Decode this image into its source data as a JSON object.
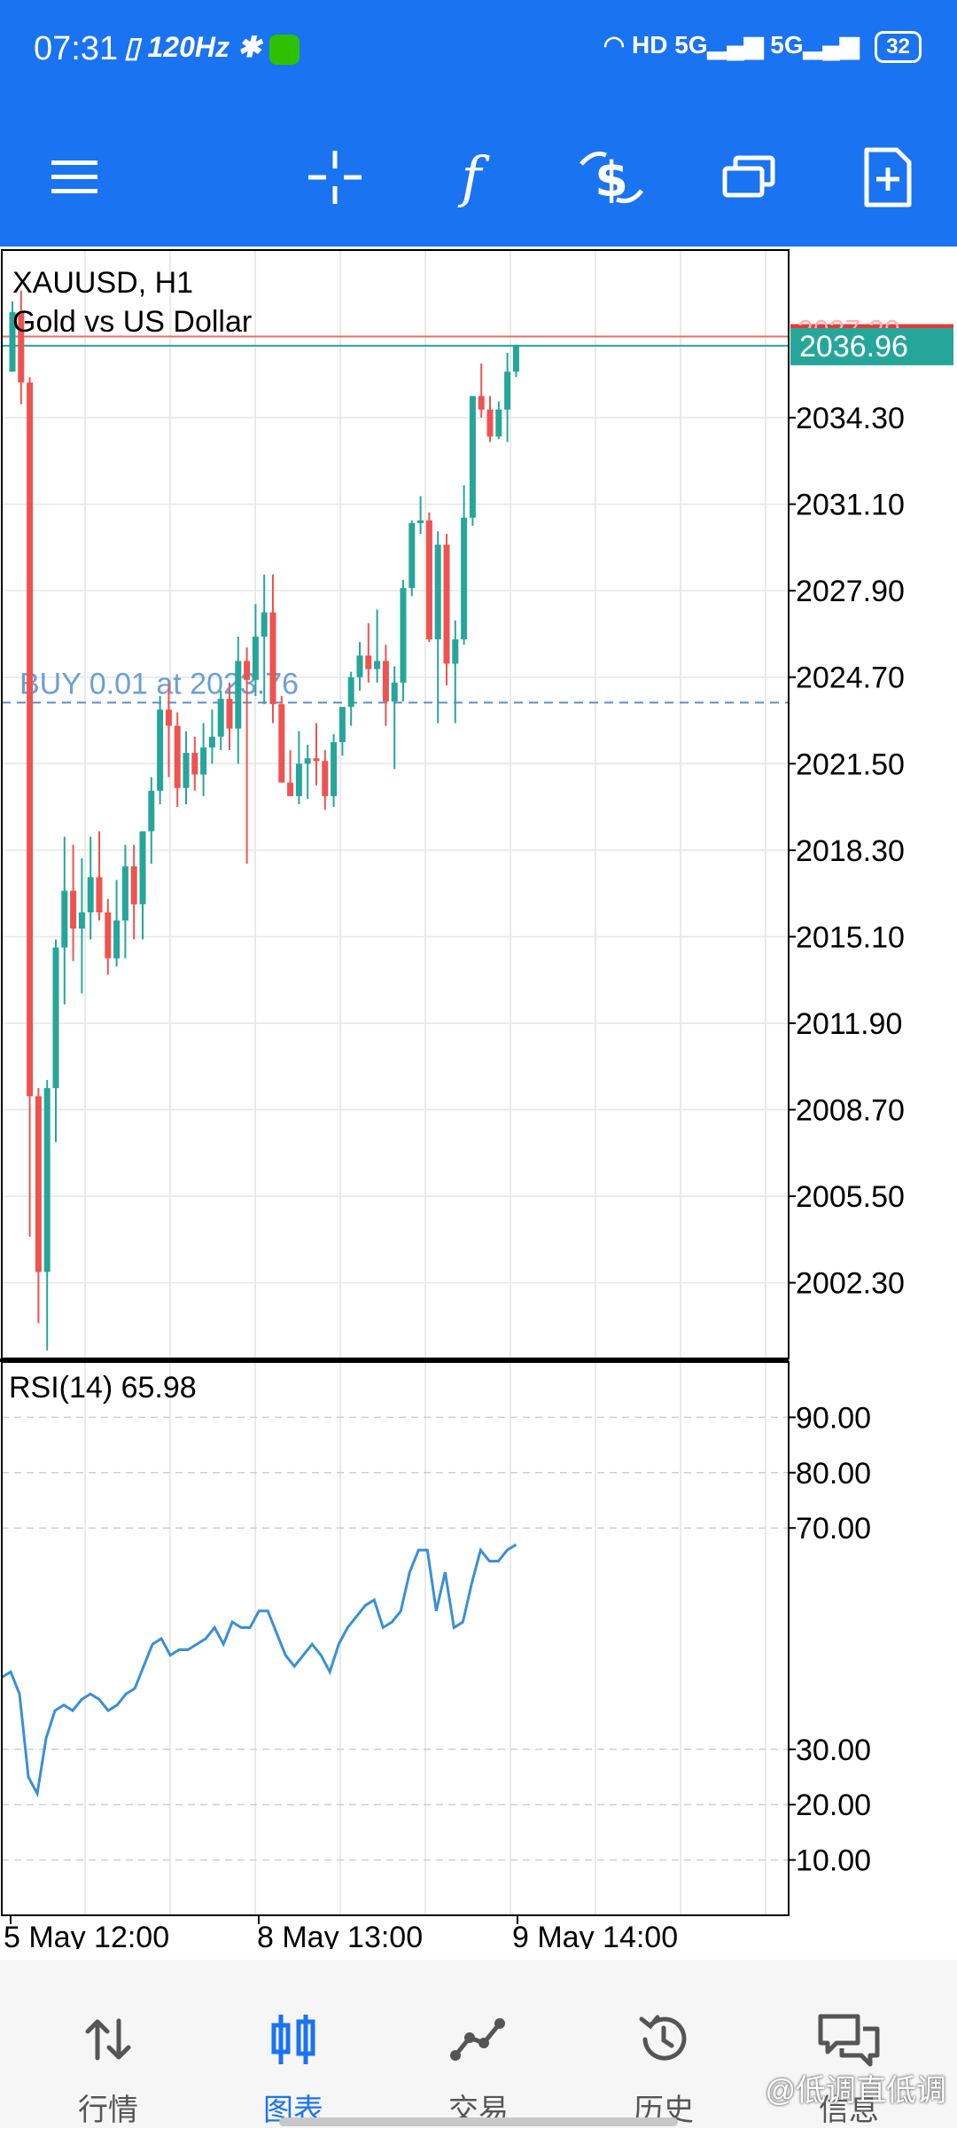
{
  "status_bar": {
    "time": "07:31",
    "refresh_rate": "120Hz",
    "network": "HD",
    "battery": "32",
    "icons": [
      "vibrate-icon",
      "bluetooth-icon",
      "wechat-icon",
      "wifi-icon",
      "signal-5g-icon",
      "signal-5g-icon"
    ]
  },
  "toolbar": {
    "buttons": [
      "menu-icon",
      "crosshair-icon",
      "indicators-icon",
      "trade-icon",
      "timeframe-windows-icon",
      "new-order-icon"
    ]
  },
  "chart_data": [
    {
      "type": "candlestick",
      "symbol": "XAUUSD, H1",
      "description": "Gold vs US Dollar",
      "ylim": [
        1999.5,
        2040.5
      ],
      "yticks": [
        2034.3,
        2031.1,
        2027.9,
        2024.7,
        2021.5,
        2018.3,
        2015.1,
        2011.9,
        2008.7,
        2005.5,
        2002.3
      ],
      "ytick_labels": [
        "2034.30",
        "2031.10",
        "2027.90",
        "2024.70",
        "2021.50",
        "2018.30",
        "2015.10",
        "2011.90",
        "2008.70",
        "2005.50",
        "2002.30"
      ],
      "bid_price": "2036.96",
      "bid_value": 2036.96,
      "ask_price": "2037.30",
      "ask_value": 2037.3,
      "buy_line_label": "BUY 0.01 at 2023.76",
      "buy_line_value": 2023.76,
      "up_color": "#26a69a",
      "down_color": "#ef5350",
      "candles": [
        {
          "o": 2036.0,
          "h": 2038.6,
          "l": 2036.0,
          "c": 2038.2
        },
        {
          "o": 2038.2,
          "h": 2039.0,
          "l": 2034.8,
          "c": 2035.6
        },
        {
          "o": 2035.6,
          "h": 2035.8,
          "l": 2004.0,
          "c": 2009.2
        },
        {
          "o": 2009.2,
          "h": 2009.5,
          "l": 2000.8,
          "c": 2002.7
        },
        {
          "o": 2002.7,
          "h": 2009.8,
          "l": 1999.8,
          "c": 2009.5
        },
        {
          "o": 2009.5,
          "h": 2015.0,
          "l": 2007.5,
          "c": 2014.7
        },
        {
          "o": 2014.7,
          "h": 2018.8,
          "l": 2012.6,
          "c": 2016.8
        },
        {
          "o": 2016.8,
          "h": 2018.5,
          "l": 2014.2,
          "c": 2015.4
        },
        {
          "o": 2015.4,
          "h": 2018.0,
          "l": 2013.0,
          "c": 2016.0
        },
        {
          "o": 2016.0,
          "h": 2018.8,
          "l": 2015.0,
          "c": 2017.3
        },
        {
          "o": 2017.3,
          "h": 2019.0,
          "l": 2015.7,
          "c": 2016.0
        },
        {
          "o": 2016.0,
          "h": 2016.5,
          "l": 2013.7,
          "c": 2014.3
        },
        {
          "o": 2014.3,
          "h": 2017.2,
          "l": 2014.0,
          "c": 2015.7
        },
        {
          "o": 2015.7,
          "h": 2018.5,
          "l": 2014.3,
          "c": 2017.7
        },
        {
          "o": 2017.7,
          "h": 2018.5,
          "l": 2015.0,
          "c": 2016.3
        },
        {
          "o": 2016.3,
          "h": 2019.0,
          "l": 2015.0,
          "c": 2019.0
        },
        {
          "o": 2019.0,
          "h": 2021.0,
          "l": 2017.8,
          "c": 2020.5
        },
        {
          "o": 2020.5,
          "h": 2024.0,
          "l": 2020.0,
          "c": 2023.5
        },
        {
          "o": 2023.5,
          "h": 2024.5,
          "l": 2021.0,
          "c": 2022.9
        },
        {
          "o": 2022.9,
          "h": 2023.4,
          "l": 2019.9,
          "c": 2020.6
        },
        {
          "o": 2020.6,
          "h": 2022.7,
          "l": 2020.0,
          "c": 2021.9
        },
        {
          "o": 2021.9,
          "h": 2022.5,
          "l": 2020.5,
          "c": 2021.1
        },
        {
          "o": 2021.1,
          "h": 2023.0,
          "l": 2020.3,
          "c": 2022.1
        },
        {
          "o": 2022.1,
          "h": 2023.5,
          "l": 2021.5,
          "c": 2022.5
        },
        {
          "o": 2022.5,
          "h": 2024.2,
          "l": 2022.0,
          "c": 2023.9
        },
        {
          "o": 2023.9,
          "h": 2024.5,
          "l": 2022.0,
          "c": 2022.8
        },
        {
          "o": 2022.8,
          "h": 2026.2,
          "l": 2021.5,
          "c": 2025.3
        },
        {
          "o": 2025.3,
          "h": 2025.8,
          "l": 2017.8,
          "c": 2024.6
        },
        {
          "o": 2024.6,
          "h": 2027.4,
          "l": 2024.0,
          "c": 2026.2
        },
        {
          "o": 2026.2,
          "h": 2028.5,
          "l": 2023.7,
          "c": 2027.1
        },
        {
          "o": 2027.1,
          "h": 2028.5,
          "l": 2023.0,
          "c": 2023.7
        },
        {
          "o": 2023.7,
          "h": 2024.0,
          "l": 2020.8,
          "c": 2020.8
        },
        {
          "o": 2020.8,
          "h": 2022.0,
          "l": 2020.3,
          "c": 2020.3
        },
        {
          "o": 2020.3,
          "h": 2022.7,
          "l": 2020.0,
          "c": 2021.5
        },
        {
          "o": 2021.5,
          "h": 2022.2,
          "l": 2020.2,
          "c": 2021.7
        },
        {
          "o": 2021.7,
          "h": 2023.0,
          "l": 2020.7,
          "c": 2021.6
        },
        {
          "o": 2021.6,
          "h": 2022.0,
          "l": 2019.8,
          "c": 2020.3
        },
        {
          "o": 2020.3,
          "h": 2022.6,
          "l": 2019.9,
          "c": 2022.3
        },
        {
          "o": 2022.3,
          "h": 2023.5,
          "l": 2021.8,
          "c": 2023.6
        },
        {
          "o": 2023.6,
          "h": 2024.9,
          "l": 2022.9,
          "c": 2024.7
        },
        {
          "o": 2024.7,
          "h": 2026.0,
          "l": 2024.2,
          "c": 2025.5
        },
        {
          "o": 2025.5,
          "h": 2026.7,
          "l": 2024.5,
          "c": 2025.0
        },
        {
          "o": 2025.0,
          "h": 2027.2,
          "l": 2024.5,
          "c": 2025.3
        },
        {
          "o": 2025.3,
          "h": 2025.9,
          "l": 2022.9,
          "c": 2023.8
        },
        {
          "o": 2023.8,
          "h": 2025.1,
          "l": 2021.3,
          "c": 2024.5
        },
        {
          "o": 2024.5,
          "h": 2028.3,
          "l": 2023.8,
          "c": 2028.0
        },
        {
          "o": 2028.0,
          "h": 2030.5,
          "l": 2027.7,
          "c": 2030.4
        },
        {
          "o": 2030.4,
          "h": 2031.4,
          "l": 2030.0,
          "c": 2030.5
        },
        {
          "o": 2030.5,
          "h": 2030.8,
          "l": 2026.0,
          "c": 2026.1
        },
        {
          "o": 2026.1,
          "h": 2030.1,
          "l": 2023.0,
          "c": 2029.6
        },
        {
          "o": 2029.6,
          "h": 2030.0,
          "l": 2024.4,
          "c": 2025.2
        },
        {
          "o": 2025.2,
          "h": 2026.8,
          "l": 2023.0,
          "c": 2026.1
        },
        {
          "o": 2026.1,
          "h": 2031.8,
          "l": 2025.9,
          "c": 2030.6
        },
        {
          "o": 2030.6,
          "h": 2035.0,
          "l": 2030.3,
          "c": 2035.1
        },
        {
          "o": 2035.1,
          "h": 2036.3,
          "l": 2034.3,
          "c": 2034.6
        },
        {
          "o": 2034.6,
          "h": 2035.1,
          "l": 2033.4,
          "c": 2033.6
        },
        {
          "o": 2033.6,
          "h": 2034.9,
          "l": 2033.5,
          "c": 2034.6
        },
        {
          "o": 2034.6,
          "h": 2036.7,
          "l": 2033.4,
          "c": 2036.0
        },
        {
          "o": 2036.0,
          "h": 2037.0,
          "l": 2035.8,
          "c": 2036.96
        }
      ]
    },
    {
      "type": "line",
      "label": "RSI(14) 65.98",
      "ylim": [
        0,
        100
      ],
      "yticks": [
        90,
        80,
        70,
        30,
        20,
        10
      ],
      "ytick_labels": [
        "90.00",
        "80.00",
        "70.00",
        "30.00",
        "20.00",
        "10.00"
      ],
      "line_color": "#3a8fd6",
      "series": [
        {
          "name": "RSI(14)",
          "values": [
            43,
            44,
            40,
            25,
            22,
            32,
            37,
            38,
            37,
            39,
            40,
            39,
            37,
            38,
            40,
            41,
            45,
            49,
            50,
            47,
            48,
            48,
            49,
            50,
            52,
            49,
            53,
            52,
            52,
            55,
            55,
            51,
            47,
            45,
            47,
            49,
            47,
            44,
            49,
            52,
            54,
            56,
            57,
            52,
            53,
            55,
            62,
            66,
            66,
            55,
            62,
            52,
            53,
            60,
            66,
            64,
            64,
            66,
            67
          ]
        }
      ]
    }
  ],
  "x_axis": {
    "labels": [
      "5 May 12:00",
      "8 May 13:00",
      "9 May 14:00"
    ]
  },
  "bottom_nav": {
    "items": [
      {
        "label": "行情",
        "icon": "quotes-arrows-icon"
      },
      {
        "label": "图表",
        "icon": "chart-candles-icon"
      },
      {
        "label": "交易",
        "icon": "trade-line-icon"
      },
      {
        "label": "历史",
        "icon": "history-clock-icon"
      },
      {
        "label": "信息",
        "icon": "messages-icon"
      }
    ],
    "active_index": 1,
    "active_color": "#1a73f0"
  },
  "watermark": "@低调直低调"
}
